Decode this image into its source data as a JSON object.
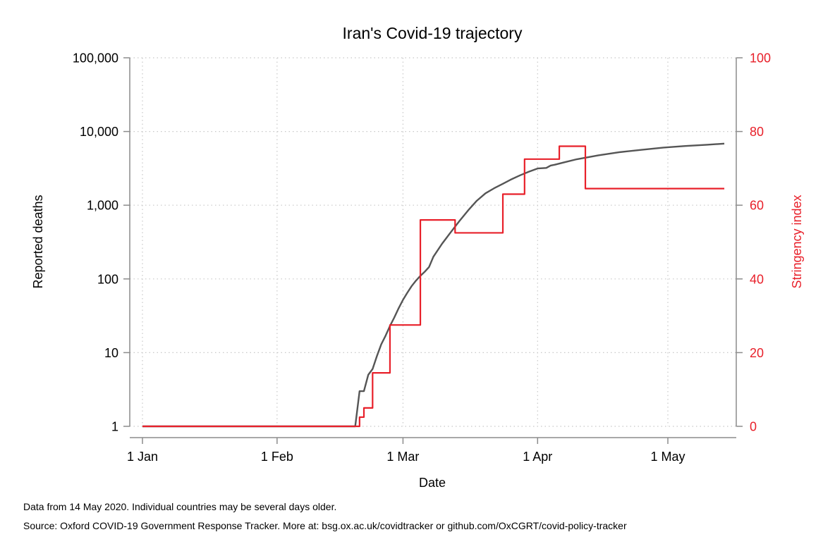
{
  "chart_data": {
    "type": "line",
    "title": "Iran's Covid-19 trajectory",
    "xlabel": "Date",
    "ylabel": "Reported deaths",
    "ylabel_right": "Stringency index",
    "x_ticks": [
      {
        "label": "1 Jan",
        "day": 0
      },
      {
        "label": "1 Feb",
        "day": 31
      },
      {
        "label": "1 Mar",
        "day": 60
      },
      {
        "label": "1 Apr",
        "day": 91
      },
      {
        "label": "1 May",
        "day": 121
      }
    ],
    "xlim_days": [
      -3,
      135
    ],
    "y_left": {
      "scale": "log",
      "ylim": [
        1,
        100000
      ],
      "ticks": [
        {
          "label": "1",
          "value": 1
        },
        {
          "label": "10",
          "value": 10
        },
        {
          "label": "100",
          "value": 100
        },
        {
          "label": "1,000",
          "value": 1000
        },
        {
          "label": "10,000",
          "value": 10000
        },
        {
          "label": "100,000",
          "value": 100000
        }
      ]
    },
    "y_right": {
      "scale": "linear",
      "ylim": [
        0,
        100
      ],
      "ticks": [
        {
          "label": "0",
          "value": 0
        },
        {
          "label": "20",
          "value": 20
        },
        {
          "label": "40",
          "value": 40
        },
        {
          "label": "60",
          "value": 60
        },
        {
          "label": "80",
          "value": 80
        },
        {
          "label": "100",
          "value": 100
        }
      ]
    },
    "grid": true,
    "series": [
      {
        "axis": "left",
        "color": "#555555",
        "step": false,
        "x": [
          "2020-01-01",
          "2020-02-19",
          "2020-02-20",
          "2020-02-21",
          "2020-02-22",
          "2020-02-23",
          "2020-02-24",
          "2020-02-25",
          "2020-02-26",
          "2020-02-27",
          "2020-02-28",
          "2020-02-29",
          "2020-03-01",
          "2020-03-02",
          "2020-03-03",
          "2020-03-04",
          "2020-03-05",
          "2020-03-06",
          "2020-03-07",
          "2020-03-08",
          "2020-03-10",
          "2020-03-12",
          "2020-03-14",
          "2020-03-16",
          "2020-03-18",
          "2020-03-20",
          "2020-03-22",
          "2020-03-24",
          "2020-03-26",
          "2020-03-28",
          "2020-03-30",
          "2020-04-01",
          "2020-04-03",
          "2020-04-04",
          "2020-04-05",
          "2020-04-07",
          "2020-04-10",
          "2020-04-15",
          "2020-04-20",
          "2020-04-25",
          "2020-04-30",
          "2020-05-05",
          "2020-05-10",
          "2020-05-14"
        ],
        "y": [
          1,
          1,
          3,
          3,
          5,
          6,
          9,
          13,
          17,
          23,
          30,
          40,
          52,
          65,
          80,
          95,
          110,
          125,
          145,
          200,
          300,
          430,
          610,
          850,
          1150,
          1450,
          1700,
          1950,
          2250,
          2550,
          2850,
          3150,
          3200,
          3450,
          3550,
          3800,
          4200,
          4750,
          5250,
          5650,
          6050,
          6350,
          6600,
          6850
        ]
      },
      {
        "axis": "right",
        "color": "#e8202a",
        "step": true,
        "x": [
          "2020-01-01",
          "2020-02-19",
          "2020-02-20",
          "2020-02-21",
          "2020-02-22",
          "2020-02-23",
          "2020-02-25",
          "2020-02-26",
          "2020-02-27",
          "2020-03-04",
          "2020-03-05",
          "2020-03-12",
          "2020-03-13",
          "2020-03-23",
          "2020-03-24",
          "2020-03-28",
          "2020-03-29",
          "2020-04-05",
          "2020-04-06",
          "2020-04-11",
          "2020-04-12",
          "2020-05-14"
        ],
        "y": [
          0,
          0,
          2.5,
          5,
          5,
          14.5,
          14.5,
          14.5,
          27.5,
          27.5,
          56,
          56,
          52.5,
          52.5,
          63,
          63,
          72.5,
          72.5,
          76,
          76,
          64.5,
          64.5
        ]
      }
    ]
  },
  "notes": {
    "line1": "Data from 14 May 2020. Individual countries may be several days older.",
    "line2": "Source: Oxford COVID-19 Government Response Tracker. More at: bsg.ox.ac.uk/covidtracker or github.com/OxCGRT/covid-policy-tracker"
  },
  "colors": {
    "deaths_line": "#555555",
    "stringency_line": "#e8202a",
    "right_axis_text": "#e8202a",
    "grid": "#c8c8c8",
    "axis": "#8c8c8c"
  }
}
